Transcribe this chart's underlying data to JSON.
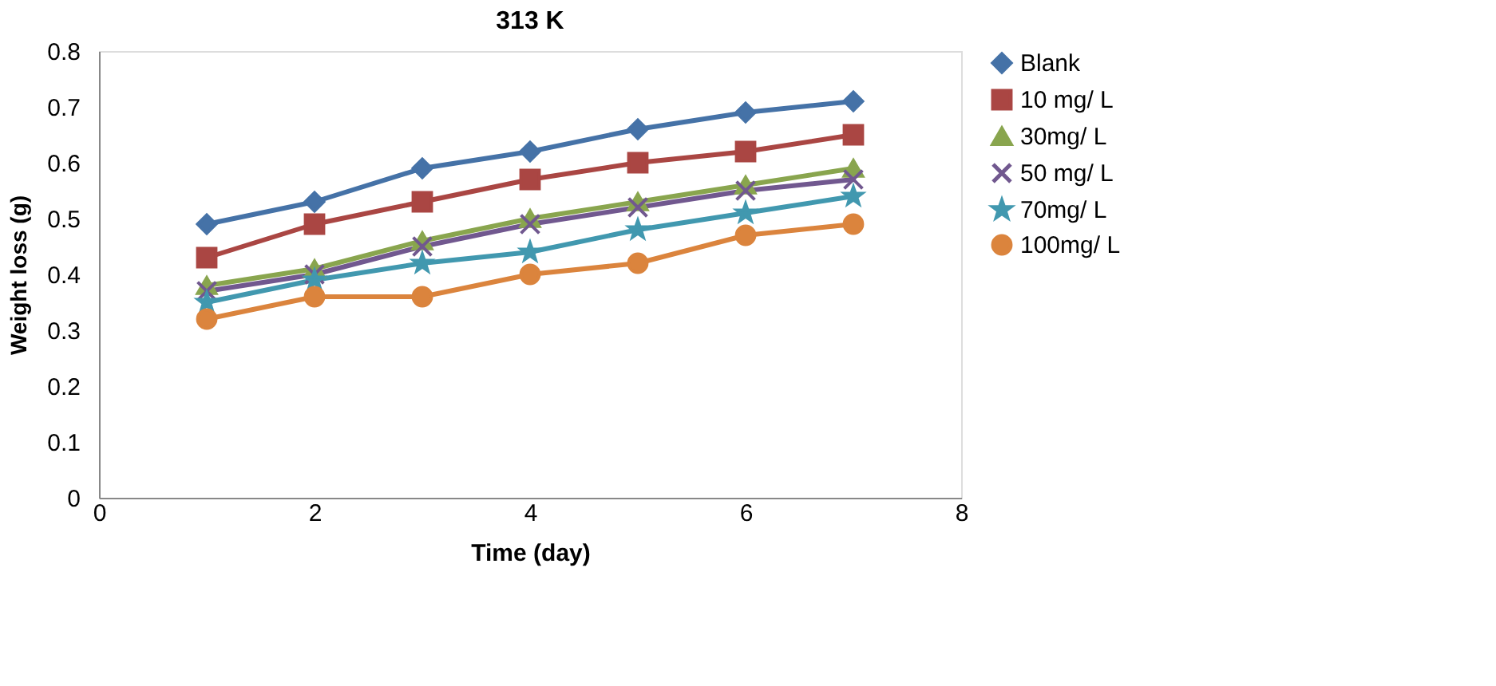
{
  "chart_data": {
    "type": "line",
    "title": "313 K",
    "xlabel": "Time (day)",
    "ylabel": "Weight loss (g)",
    "x": [
      1,
      2,
      3,
      4,
      5,
      6,
      7
    ],
    "series": [
      {
        "name": "Blank",
        "color": "#4572a7",
        "marker": "diamond",
        "values": [
          0.49,
          0.53,
          0.59,
          0.62,
          0.66,
          0.69,
          0.71
        ]
      },
      {
        "name": "10 mg/ L",
        "color": "#aa4643",
        "marker": "square",
        "values": [
          0.43,
          0.49,
          0.53,
          0.57,
          0.6,
          0.62,
          0.65
        ]
      },
      {
        "name": "30mg/ L",
        "color": "#89a54e",
        "marker": "triangle",
        "values": [
          0.38,
          0.41,
          0.46,
          0.5,
          0.53,
          0.56,
          0.59
        ]
      },
      {
        "name": "50 mg/ L",
        "color": "#71588f",
        "marker": "cross",
        "values": [
          0.37,
          0.4,
          0.45,
          0.49,
          0.52,
          0.55,
          0.57
        ]
      },
      {
        "name": "70mg/ L",
        "color": "#4198af",
        "marker": "star",
        "values": [
          0.35,
          0.39,
          0.42,
          0.44,
          0.48,
          0.51,
          0.54
        ]
      },
      {
        "name": "100mg/ L",
        "color": "#db843d",
        "marker": "circle",
        "values": [
          0.32,
          0.36,
          0.36,
          0.4,
          0.42,
          0.47,
          0.49
        ]
      }
    ],
    "xlim": [
      0,
      8
    ],
    "xticks": [
      0,
      2,
      4,
      6,
      8
    ],
    "ylim": [
      0,
      0.8
    ],
    "yticks": [
      0,
      0.1,
      0.2,
      0.3,
      0.4,
      0.5,
      0.6,
      0.7,
      0.8
    ],
    "grid": false,
    "legend": "right",
    "line_style": "solid"
  }
}
